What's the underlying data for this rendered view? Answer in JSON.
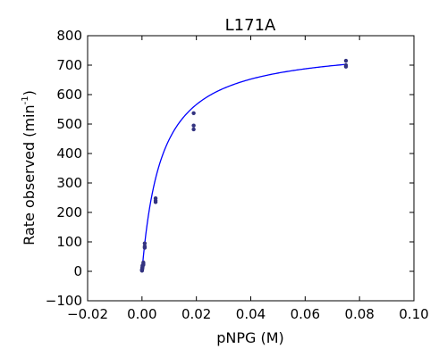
{
  "chart_data": {
    "type": "scatter",
    "title": "L171A",
    "xlabel": "pNPG (M)",
    "ylabel": {
      "prefix": "Rate observed (min",
      "superscript": "-1",
      "suffix": ")"
    },
    "xlim": [
      -0.02,
      0.1
    ],
    "ylim": [
      -100,
      800
    ],
    "xticks": [
      -0.02,
      0.0,
      0.02,
      0.04,
      0.06,
      0.08,
      0.1
    ],
    "xtick_labels": [
      "−0.02",
      "0.00",
      "0.02",
      "0.04",
      "0.06",
      "0.08",
      "0.10"
    ],
    "yticks": [
      -100,
      0,
      100,
      200,
      300,
      400,
      500,
      600,
      700,
      800
    ],
    "ytick_labels": [
      "−100",
      "0",
      "100",
      "200",
      "300",
      "400",
      "500",
      "600",
      "700",
      "800"
    ],
    "grid": false,
    "colors": {
      "points": "#333380",
      "fit": "#0000ff"
    },
    "points": {
      "x": [
        0.0,
        0.0,
        0.0,
        0.0001,
        0.0001,
        0.0001,
        0.0002,
        0.0002,
        0.0002,
        0.0005,
        0.0005,
        0.0005,
        0.001,
        0.001,
        0.001,
        0.005,
        0.005,
        0.005,
        0.019,
        0.019,
        0.019,
        0.075,
        0.075,
        0.075
      ],
      "y": [
        2,
        4,
        6,
        10,
        8,
        12,
        20,
        18,
        15,
        30,
        22,
        25,
        95,
        80,
        85,
        248,
        235,
        240,
        537,
        482,
        495,
        715,
        700,
        695
      ]
    },
    "fit": {
      "model": "michaelis-menten",
      "vmax": 770,
      "km": 0.0072,
      "x_range": [
        0.0,
        0.075
      ]
    }
  }
}
